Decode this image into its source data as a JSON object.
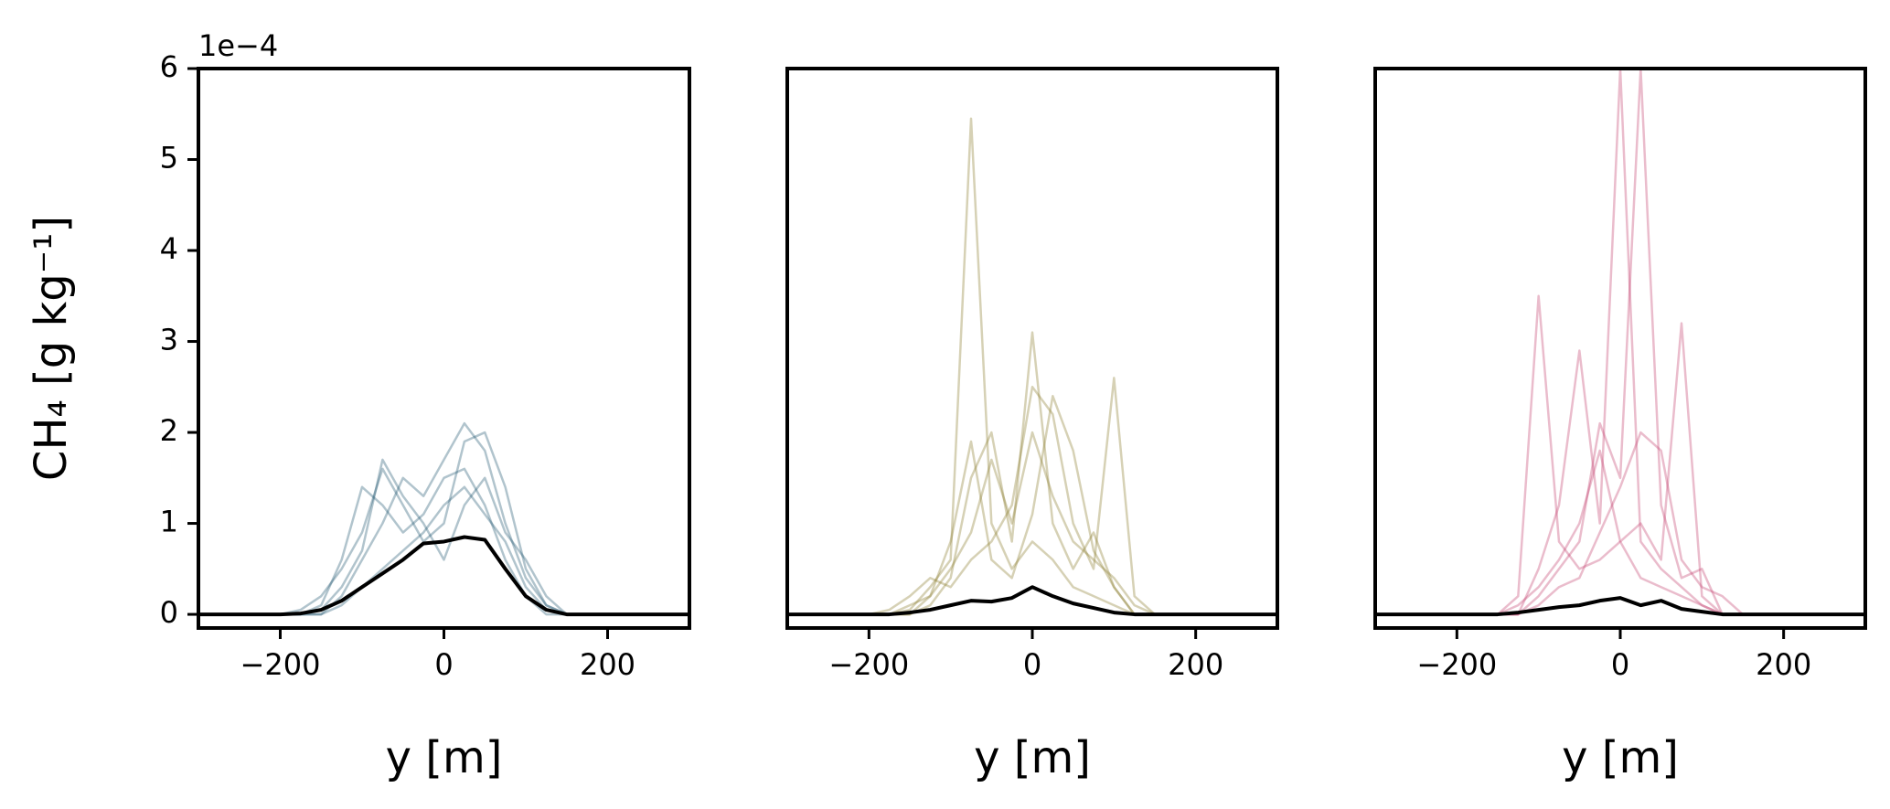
{
  "chart_data": [
    {
      "type": "line",
      "ylabel": "CH₄ [g kg⁻¹]",
      "offset_text": "1e−4",
      "xlabel": "y [m]",
      "xlim": [
        -300,
        300
      ],
      "ylim": [
        -0.15,
        6
      ],
      "xticks": [
        {
          "value": -200,
          "label": "−200"
        },
        0,
        200
      ],
      "yticks": [
        0,
        1,
        2,
        3,
        4,
        5,
        6
      ],
      "x": [
        -300,
        -200,
        -175,
        -150,
        -125,
        -100,
        -75,
        -50,
        -25,
        0,
        25,
        50,
        75,
        100,
        125,
        150,
        300
      ],
      "series": [
        {
          "color": "#1f5670",
          "alpha": 0.35,
          "linewidth": 2.5,
          "values": [
            0,
            0,
            0,
            0.1,
            0.6,
            1.4,
            1.2,
            0.9,
            1.1,
            1.5,
            1.6,
            1.2,
            0.6,
            0.2,
            0,
            0,
            0
          ]
        },
        {
          "color": "#1f5670",
          "alpha": 0.35,
          "linewidth": 2.5,
          "values": [
            0,
            0,
            0,
            0,
            0.2,
            0.6,
            1.0,
            1.5,
            1.3,
            1.7,
            2.1,
            1.8,
            1.0,
            0.4,
            0.1,
            0,
            0
          ]
        },
        {
          "color": "#1f5670",
          "alpha": 0.35,
          "linewidth": 2.5,
          "values": [
            0,
            0,
            0.05,
            0.2,
            0.5,
            0.9,
            1.6,
            1.2,
            0.8,
            1.0,
            1.9,
            2.0,
            1.4,
            0.5,
            0.1,
            0,
            0
          ]
        },
        {
          "color": "#1f5670",
          "alpha": 0.35,
          "linewidth": 2.5,
          "values": [
            0,
            0,
            0,
            0,
            0.1,
            0.3,
            0.5,
            0.7,
            0.9,
            1.2,
            1.4,
            1.1,
            0.8,
            0.3,
            0.05,
            0,
            0
          ]
        },
        {
          "color": "#1f5670",
          "alpha": 0.35,
          "linewidth": 2.5,
          "values": [
            0,
            0,
            0,
            0.05,
            0.3,
            0.7,
            1.7,
            1.3,
            1.0,
            0.6,
            1.2,
            1.5,
            0.9,
            0.6,
            0.2,
            0,
            0
          ]
        },
        {
          "color": "#000000",
          "alpha": 1,
          "linewidth": 4,
          "values": [
            0,
            0,
            0.01,
            0.05,
            0.15,
            0.3,
            0.45,
            0.6,
            0.78,
            0.8,
            0.85,
            0.82,
            0.5,
            0.2,
            0.05,
            0,
            0
          ]
        }
      ]
    },
    {
      "type": "line",
      "xlabel": "y [m]",
      "xlim": [
        -300,
        300
      ],
      "ylim": [
        -0.15,
        6
      ],
      "xticks": [
        {
          "value": -200,
          "label": "−200"
        },
        0,
        200
      ],
      "x": [
        -300,
        -200,
        -175,
        -150,
        -125,
        -100,
        -75,
        -50,
        -25,
        0,
        25,
        50,
        75,
        100,
        125,
        150,
        300
      ],
      "series": [
        {
          "color": "#8a7a2a",
          "alpha": 0.35,
          "linewidth": 2.5,
          "values": [
            0,
            0,
            0,
            0.05,
            0.3,
            0.6,
            5.45,
            1.0,
            0.5,
            0.8,
            0.6,
            0.3,
            0.2,
            0.1,
            0,
            0,
            0
          ]
        },
        {
          "color": "#8a7a2a",
          "alpha": 0.35,
          "linewidth": 2.5,
          "values": [
            0,
            0,
            0,
            0,
            0.1,
            0.4,
            1.5,
            2.0,
            0.8,
            3.1,
            1.0,
            0.5,
            0.9,
            0.3,
            0,
            0,
            0
          ]
        },
        {
          "color": "#8a7a2a",
          "alpha": 0.35,
          "linewidth": 2.5,
          "values": [
            0,
            0,
            0.05,
            0.2,
            0.4,
            0.3,
            0.6,
            0.8,
            1.2,
            2.5,
            2.2,
            1.0,
            0.5,
            2.6,
            0.2,
            0,
            0
          ]
        },
        {
          "color": "#8a7a2a",
          "alpha": 0.35,
          "linewidth": 2.5,
          "values": [
            0,
            0,
            0,
            0,
            0.2,
            0.5,
            0.9,
            1.7,
            1.0,
            2.0,
            1.3,
            0.8,
            0.6,
            0.4,
            0.1,
            0,
            0
          ]
        },
        {
          "color": "#8a7a2a",
          "alpha": 0.35,
          "linewidth": 2.5,
          "values": [
            0,
            0,
            0,
            0.1,
            0.2,
            0.8,
            1.9,
            0.6,
            0.4,
            1.1,
            2.4,
            1.8,
            0.7,
            0.3,
            0,
            0,
            0
          ]
        },
        {
          "color": "#000000",
          "alpha": 1,
          "linewidth": 4,
          "values": [
            0,
            0,
            0,
            0.02,
            0.05,
            0.1,
            0.15,
            0.14,
            0.18,
            0.3,
            0.2,
            0.12,
            0.07,
            0.02,
            0,
            0,
            0
          ]
        }
      ]
    },
    {
      "type": "line",
      "xlabel": "y [m]",
      "xlim": [
        -300,
        300
      ],
      "ylim": [
        -0.15,
        6
      ],
      "xticks": [
        {
          "value": -200,
          "label": "−200"
        },
        0,
        200
      ],
      "x": [
        -300,
        -200,
        -175,
        -150,
        -125,
        -100,
        -75,
        -50,
        -25,
        0,
        25,
        50,
        75,
        100,
        125,
        150,
        300
      ],
      "series": [
        {
          "color": "#c2406e",
          "alpha": 0.35,
          "linewidth": 2.5,
          "values": [
            0,
            0,
            0,
            0,
            0.2,
            3.5,
            0.8,
            0.5,
            0.6,
            0.8,
            0.4,
            0.3,
            0.2,
            0.1,
            0,
            0,
            0
          ]
        },
        {
          "color": "#c2406e",
          "alpha": 0.35,
          "linewidth": 2.5,
          "values": [
            0,
            0,
            0,
            0,
            0,
            0.5,
            1.2,
            2.9,
            1.0,
            6,
            0.8,
            0.5,
            0.3,
            0.1,
            0,
            0,
            0
          ]
        },
        {
          "color": "#c2406e",
          "alpha": 0.35,
          "linewidth": 2.5,
          "values": [
            0,
            0,
            0,
            0,
            0,
            0.2,
            0.5,
            0.8,
            2.1,
            1.5,
            6,
            1.2,
            0.4,
            0.5,
            0,
            0,
            0
          ]
        },
        {
          "color": "#c2406e",
          "alpha": 0.35,
          "linewidth": 2.5,
          "values": [
            0,
            0,
            0,
            0,
            0.1,
            0.3,
            0.6,
            1.0,
            1.8,
            0.8,
            1.0,
            0.6,
            3.2,
            0.2,
            0,
            0,
            0
          ]
        },
        {
          "color": "#c2406e",
          "alpha": 0.35,
          "linewidth": 2.5,
          "values": [
            0,
            0,
            0,
            0,
            0,
            0.1,
            0.3,
            0.4,
            0.9,
            1.4,
            2.0,
            1.8,
            0.6,
            0.3,
            0.2,
            0,
            0
          ]
        },
        {
          "color": "#000000",
          "alpha": 1,
          "linewidth": 4,
          "values": [
            0,
            0,
            0,
            0,
            0.02,
            0.05,
            0.08,
            0.1,
            0.15,
            0.18,
            0.1,
            0.15,
            0.06,
            0.03,
            0,
            0,
            0
          ]
        }
      ]
    }
  ]
}
